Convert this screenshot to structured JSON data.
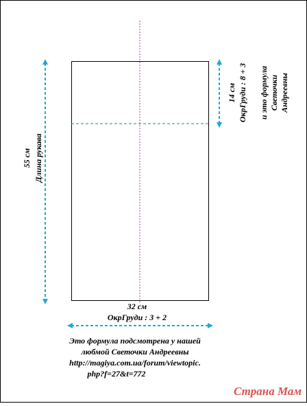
{
  "diagram": {
    "length_label": "55 см",
    "length_name": "Длина рукава",
    "top_label": "14 см",
    "top_formula": "ОкрГруди : 8 + 3",
    "side_note": [
      "и это формула",
      "Светочки",
      "Андреевны"
    ],
    "width_label": "32 см",
    "width_formula": "ОкрГруди : 3 + 2",
    "note_lines": [
      "Это формула подсмотрена у нашей",
      "любмой Светочки Андреевны",
      "http://magiya.com.ua/forum/viewtopic.",
      "php?f=27&t=772"
    ],
    "watermark": "Страна Мам"
  }
}
